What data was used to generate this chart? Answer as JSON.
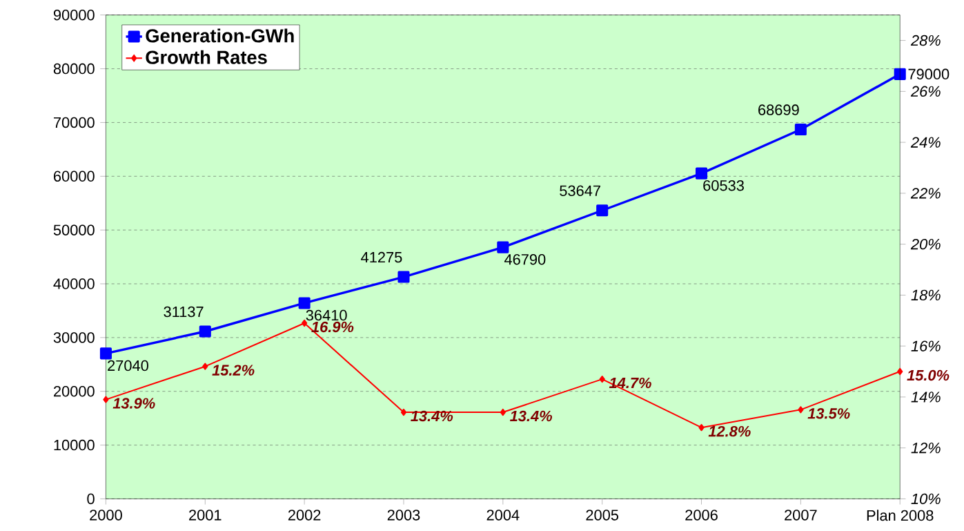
{
  "chart_data": {
    "type": "line",
    "categories": [
      "2000",
      "2001",
      "2002",
      "2003",
      "2004",
      "2005",
      "2006",
      "2007",
      "Plan 2008"
    ],
    "series": [
      {
        "name": "Generation-GWh",
        "color": "#0000ff",
        "marker": "square",
        "values": [
          27040,
          31137,
          36410,
          41275,
          46790,
          53647,
          60533,
          68699,
          79000
        ],
        "value_labels": [
          "27040",
          "31137",
          "36410",
          "41275",
          "46790",
          "53647",
          "60533",
          "68699",
          "79000"
        ]
      },
      {
        "name": "Growth Rates",
        "color": "#ff0000",
        "marker": "diamond",
        "axis": "y2",
        "values": [
          13.9,
          15.2,
          16.9,
          13.4,
          13.4,
          14.7,
          12.8,
          13.5,
          15.0
        ],
        "value_labels": [
          "13.9%",
          "15.2%",
          "16.9%",
          "13.4%",
          "13.4%",
          "14.7%",
          "12.8%",
          "13.5%",
          "15.0%"
        ]
      }
    ],
    "ylim": [
      0,
      90000
    ],
    "yticks": [
      0,
      10000,
      20000,
      30000,
      40000,
      50000,
      60000,
      70000,
      80000,
      90000
    ],
    "y2lim": [
      10,
      29
    ],
    "y2ticks": [
      {
        "value": 10,
        "label": "10%"
      },
      {
        "value": 12,
        "label": "12%"
      },
      {
        "value": 14,
        "label": "14%"
      },
      {
        "value": 16,
        "label": "16%"
      },
      {
        "value": 18,
        "label": "18%"
      },
      {
        "value": 20,
        "label": "20%"
      },
      {
        "value": 22,
        "label": "22%"
      },
      {
        "value": 24,
        "label": "24%"
      },
      {
        "value": 26,
        "label": "26%"
      },
      {
        "value": 28,
        "label": "28%"
      }
    ],
    "grid": "y",
    "legend": "top left",
    "line_style": "solid"
  }
}
